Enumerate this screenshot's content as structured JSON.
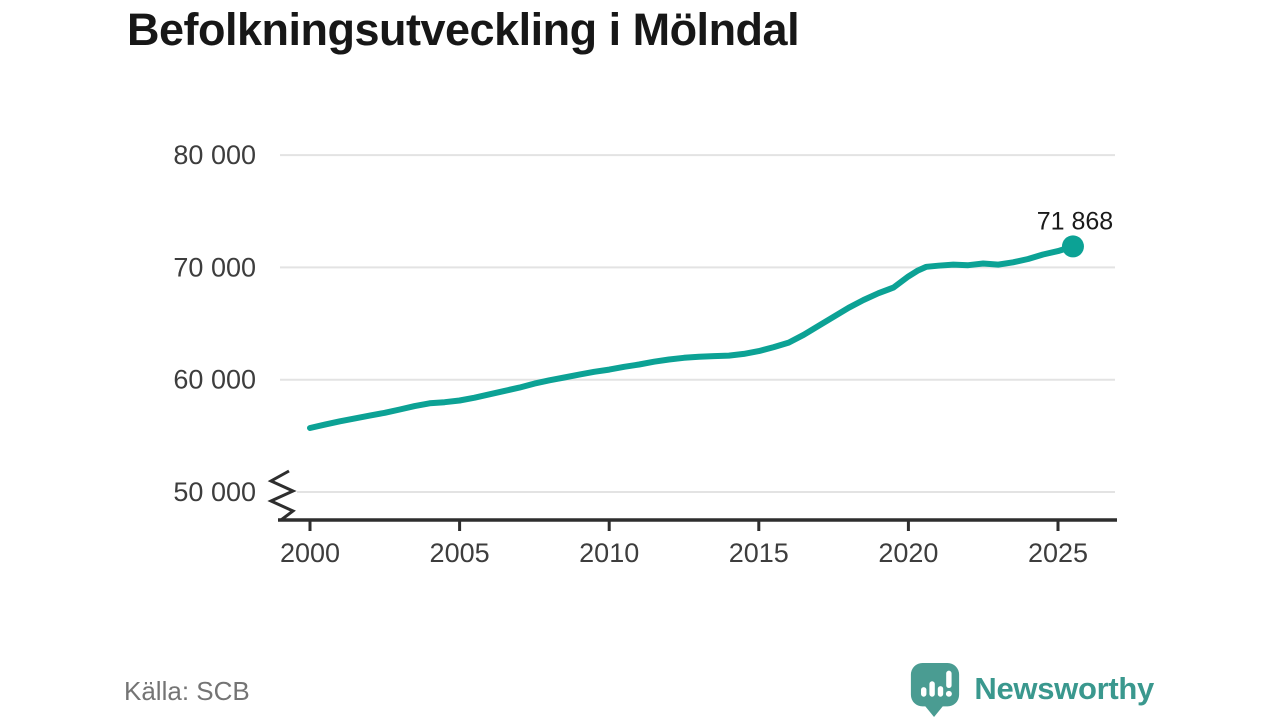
{
  "title": "Befolkningsutveckling i Mölndal",
  "source": "Källa: SCB",
  "logo": {
    "brand": "Newsworthy"
  },
  "colors": {
    "line": "#0ca295",
    "logo_teal": "#4a9c92",
    "grid": "#e3e3e3",
    "axis": "#2e2e2e",
    "tick_text": "#3d3d3d",
    "title_text": "#171717",
    "muted_text": "#747474",
    "label_text": "#1a1a1a"
  },
  "chart_data": {
    "type": "line",
    "title": "Befolkningsutveckling i Mölndal",
    "xlabel": "",
    "ylabel": "",
    "x_ticks": [
      2000,
      2005,
      2010,
      2015,
      2020,
      2025
    ],
    "x_tick_labels": [
      "2000",
      "2005",
      "2010",
      "2015",
      "2020",
      "2025"
    ],
    "y_ticks": [
      50000,
      60000,
      70000,
      80000
    ],
    "y_tick_labels": [
      "50 000",
      "60 000",
      "70 000",
      "80 000"
    ],
    "y_axis_break": true,
    "grid": "horizontal-only",
    "legend": "none",
    "end_label": "71 868",
    "final_value": 71868,
    "series": [
      {
        "name": "Befolkning i Mölndal",
        "points": [
          [
            2000,
            55700
          ],
          [
            2000.5,
            56000
          ],
          [
            2001,
            56300
          ],
          [
            2001.5,
            56550
          ],
          [
            2002,
            56800
          ],
          [
            2002.5,
            57050
          ],
          [
            2003,
            57350
          ],
          [
            2003.5,
            57650
          ],
          [
            2004,
            57900
          ],
          [
            2004.5,
            58000
          ],
          [
            2005,
            58150
          ],
          [
            2005.5,
            58400
          ],
          [
            2006,
            58700
          ],
          [
            2006.5,
            59000
          ],
          [
            2007,
            59300
          ],
          [
            2007.5,
            59650
          ],
          [
            2008,
            59950
          ],
          [
            2008.5,
            60200
          ],
          [
            2009,
            60450
          ],
          [
            2009.5,
            60700
          ],
          [
            2010,
            60900
          ],
          [
            2010.5,
            61150
          ],
          [
            2011,
            61350
          ],
          [
            2011.5,
            61600
          ],
          [
            2012,
            61800
          ],
          [
            2012.5,
            61950
          ],
          [
            2013,
            62050
          ],
          [
            2013.5,
            62100
          ],
          [
            2014,
            62150
          ],
          [
            2014.5,
            62300
          ],
          [
            2015,
            62550
          ],
          [
            2015.5,
            62900
          ],
          [
            2016,
            63300
          ],
          [
            2016.5,
            64000
          ],
          [
            2017,
            64800
          ],
          [
            2017.5,
            65600
          ],
          [
            2018,
            66400
          ],
          [
            2018.5,
            67100
          ],
          [
            2019,
            67700
          ],
          [
            2019.5,
            68200
          ],
          [
            2020,
            69200
          ],
          [
            2020.3,
            69700
          ],
          [
            2020.6,
            70050
          ],
          [
            2021,
            70150
          ],
          [
            2021.5,
            70250
          ],
          [
            2022,
            70200
          ],
          [
            2022.5,
            70350
          ],
          [
            2023,
            70250
          ],
          [
            2023.5,
            70450
          ],
          [
            2024,
            70750
          ],
          [
            2024.5,
            71150
          ],
          [
            2025,
            71450
          ],
          [
            2025.5,
            71868
          ]
        ]
      }
    ]
  }
}
